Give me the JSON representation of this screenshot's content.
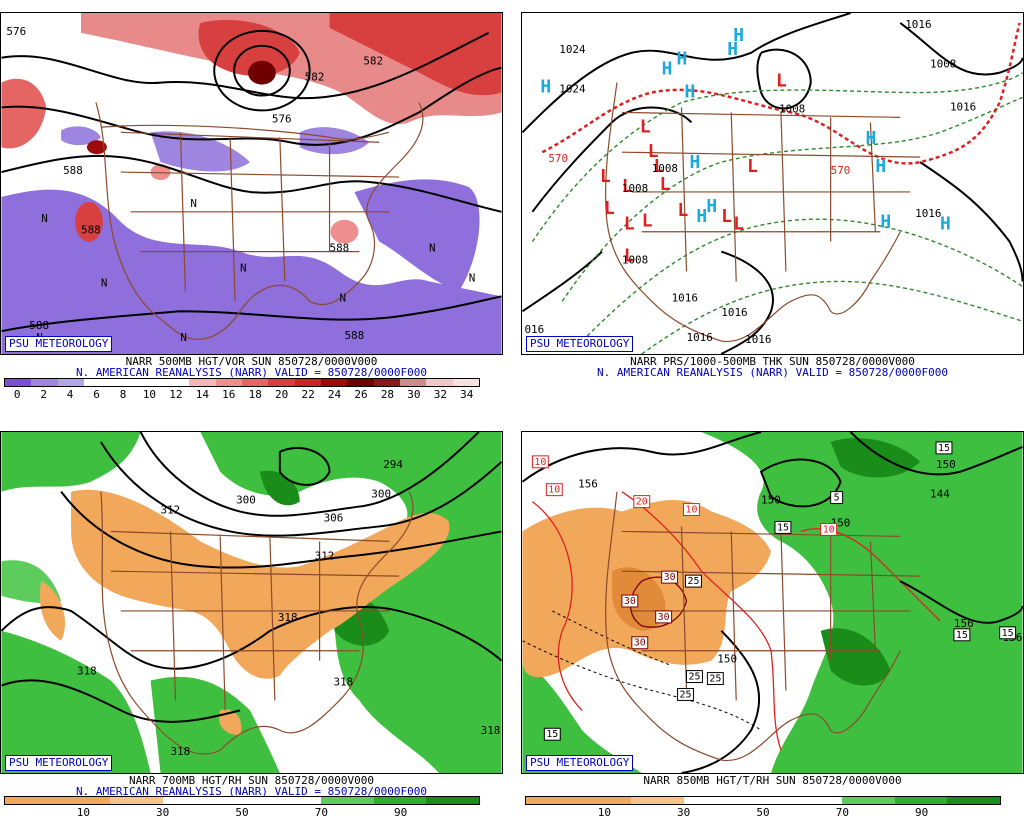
{
  "panels": [
    {
      "id": "500mb",
      "title_line": "NARR 500MB HGT/VOR SUN 850728/0000V000",
      "subtitle_line": "N. AMERICAN REANALYSIS (NARR) VALID = 850728/0000F000",
      "credit": "PSU METEOROLOGY",
      "contour_labels": [
        "576",
        "582",
        "588",
        "588",
        "588",
        "588",
        "576",
        "582",
        "588"
      ],
      "field_marks": [
        "N",
        "N",
        "N",
        "N",
        "N",
        "N",
        "N",
        "N",
        "N"
      ],
      "colorbar": {
        "colors": [
          "#7a4fd6",
          "#9d85e0",
          "#b3a6e6",
          "#ffffff",
          "#ffffff",
          "#ffffff",
          "#ffffff",
          "#f4b6b6",
          "#ee8e8e",
          "#e56464",
          "#d84040",
          "#c42424",
          "#9c0a0a",
          "#6e0000",
          "#8a1a1a",
          "#d08a8a",
          "#f0c8c8",
          "#f7e0e0"
        ],
        "ticks": [
          "0",
          "2",
          "4",
          "6",
          "8",
          "10",
          "12",
          "14",
          "16",
          "18",
          "20",
          "22",
          "24",
          "26",
          "28",
          "30",
          "32",
          "34"
        ]
      }
    },
    {
      "id": "pressure",
      "title_line": "NARR PRS/1000-500MB THK SUN 850728/0000V000",
      "subtitle_line": "N. AMERICAN REANALYSIS (NARR) VALID = 850728/0000F000",
      "credit": "PSU METEOROLOGY",
      "contour_labels": [
        "1024",
        "1024",
        "1016",
        "1008",
        "1016",
        "1008",
        "1016",
        "1016",
        "1016",
        "1016",
        "1008",
        "1016",
        "016",
        "570",
        "570",
        "1008",
        "1008"
      ],
      "highs": [
        "H",
        "H",
        "H",
        "H",
        "H",
        "H",
        "H",
        "H",
        "H",
        "H",
        "H",
        "H",
        "H"
      ],
      "lows": [
        "L",
        "L",
        "L",
        "L",
        "L",
        "L",
        "L",
        "L",
        "L",
        "L",
        "L",
        "L",
        "L",
        "L",
        "L"
      ]
    },
    {
      "id": "700mb",
      "title_line": "NARR 700MB HGT/RH SUN 850728/0000V000",
      "subtitle_line": "N. AMERICAN REANALYSIS (NARR) VALID = 850728/0000F000",
      "credit": "PSU METEOROLOGY",
      "contour_labels": [
        "294",
        "300",
        "306",
        "312",
        "300",
        "312",
        "318",
        "318",
        "318",
        "318",
        "318"
      ],
      "colorbar": {
        "colors": [
          "#f2a85a",
          "#f2a85a",
          "#f6c58e",
          "#ffffff",
          "#ffffff",
          "#ffffff",
          "#5ccd5c",
          "#2ab02a",
          "#1a8c1a"
        ],
        "ticks": [
          "10",
          "30",
          "50",
          "70",
          "90"
        ]
      }
    },
    {
      "id": "850mb",
      "title_line": "NARR 850MB HGT/T/RH SUN 850728/0000V000",
      "subtitle_line": "",
      "credit": "PSU METEOROLOGY",
      "contour_labels": [
        "156",
        "156",
        "150",
        "150",
        "144",
        "150",
        "156",
        "150"
      ],
      "temp_labels": [
        "10",
        "10",
        "20",
        "10",
        "10",
        "30",
        "30",
        "30",
        "30",
        "25",
        "25",
        "25",
        "25",
        "15",
        "15",
        "15",
        "15",
        "5",
        "15"
      ],
      "colorbar": {
        "colors": [
          "#f2a85a",
          "#f2a85a",
          "#f6c58e",
          "#ffffff",
          "#ffffff",
          "#ffffff",
          "#5ccd5c",
          "#2ab02a",
          "#1a8c1a"
        ],
        "ticks": [
          "10",
          "30",
          "50",
          "70",
          "90"
        ]
      }
    }
  ]
}
